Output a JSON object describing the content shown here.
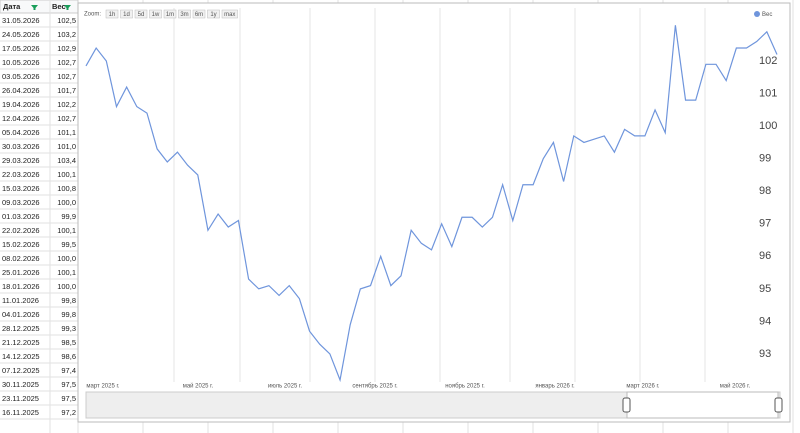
{
  "table": {
    "header": [
      "Дата",
      "Вес"
    ],
    "rows": [
      [
        "31.05.2026",
        "102,5"
      ],
      [
        "24.05.2026",
        "103,2"
      ],
      [
        "17.05.2026",
        "102,9"
      ],
      [
        "10.05.2026",
        "102,7"
      ],
      [
        "03.05.2026",
        "102,7"
      ],
      [
        "26.04.2026",
        "101,7"
      ],
      [
        "19.04.2026",
        "102,2"
      ],
      [
        "12.04.2026",
        "102,7"
      ],
      [
        "05.04.2026",
        "101,1"
      ],
      [
        "30.03.2026",
        "101,0"
      ],
      [
        "29.03.2026",
        "103,4"
      ],
      [
        "22.03.2026",
        "100,1"
      ],
      [
        "15.03.2026",
        "100,8"
      ],
      [
        "09.03.2026",
        "100,0"
      ],
      [
        "01.03.2026",
        "99,9"
      ],
      [
        "22.02.2026",
        "100,1"
      ],
      [
        "15.02.2026",
        "99,5"
      ],
      [
        "08.02.2026",
        "100,0"
      ],
      [
        "25.01.2026",
        "100,1"
      ],
      [
        "18.01.2026",
        "100,0"
      ],
      [
        "11.01.2026",
        "99,8"
      ],
      [
        "04.01.2026",
        "99,8"
      ],
      [
        "28.12.2025",
        "99,3"
      ],
      [
        "21.12.2025",
        "98,5"
      ],
      [
        "14.12.2025",
        "98,6"
      ],
      [
        "07.12.2025",
        "97,4"
      ],
      [
        "30.11.2025",
        "97,5"
      ],
      [
        "23.11.2025",
        "97,5"
      ],
      [
        "16.11.2025",
        "97,2"
      ]
    ]
  },
  "chart_data": {
    "type": "line",
    "zoom_label": "Zoom:",
    "zoom_buttons": [
      "1h",
      "1d",
      "5d",
      "1w",
      "1m",
      "3m",
      "6m",
      "1y",
      "max"
    ],
    "xlabels": [
      "март 2025 г.",
      "май 2025 г.",
      "июль 2025 г.",
      "сентябрь 2025 г.",
      "ноябрь 2025 г.",
      "январь 2026 г.",
      "март 2026 г.",
      "май 2026 г."
    ],
    "series": [
      {
        "name": "Вес",
        "color": "#6f95dc",
        "values": [
          101.85,
          102.4,
          102.0,
          100.6,
          101.2,
          100.6,
          100.4,
          99.3,
          98.9,
          99.2,
          98.8,
          98.5,
          96.8,
          97.3,
          96.9,
          97.1,
          95.3,
          95.0,
          95.1,
          94.8,
          95.1,
          94.7,
          93.7,
          93.3,
          93.0,
          92.2,
          93.9,
          95.0,
          95.1,
          96.0,
          95.1,
          95.4,
          96.8,
          96.4,
          96.2,
          97.0,
          96.3,
          97.2,
          97.2,
          96.9,
          97.2,
          98.2,
          97.1,
          98.2,
          98.2,
          99.0,
          99.5,
          98.3,
          99.7,
          99.5,
          99.6,
          99.7,
          99.2,
          99.9,
          99.7,
          99.7,
          100.5,
          99.8,
          103.1,
          100.8,
          100.8,
          101.9,
          101.9,
          101.4,
          102.4,
          102.4,
          102.6,
          102.9,
          102.2
        ]
      }
    ],
    "ylim": [
      92.2,
      103.2
    ],
    "yticks": [
      93,
      94,
      95,
      96,
      97,
      98,
      99,
      100,
      101,
      102
    ],
    "grid": true
  }
}
